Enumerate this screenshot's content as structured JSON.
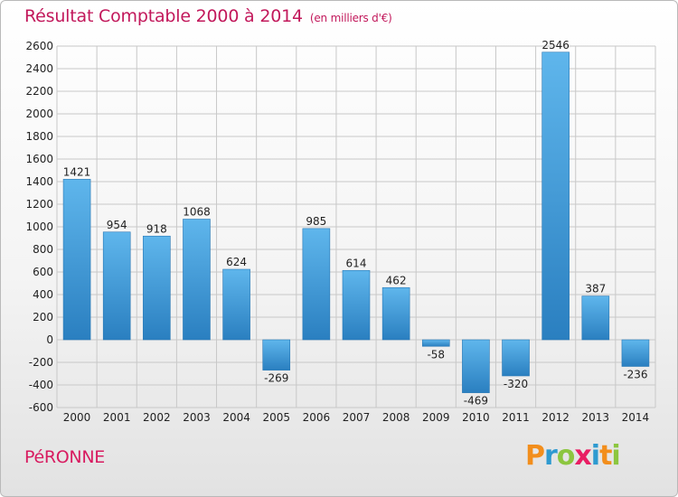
{
  "header": {
    "title": "Résultat Comptable 2000 à 2014",
    "unit": "(en milliers d'€)"
  },
  "footer": {
    "commune": "PéRONNE",
    "logo_letters": [
      "P",
      "r",
      "o",
      "x",
      "i",
      "t",
      "i"
    ],
    "logo_colors": [
      "#f28e1c",
      "#2e9ad0",
      "#8cc63f",
      "#e91e63",
      "#2e9ad0",
      "#f28e1c",
      "#8cc63f"
    ]
  },
  "colors": {
    "bar_top": "#5fb6ec",
    "bar_bottom": "#2a7fc0",
    "title": "#c2185b",
    "grid": "#c8c8c8"
  },
  "chart_data": {
    "type": "bar",
    "title": "Résultat Comptable 2000 à 2014",
    "subtitle": "(en milliers d'€)",
    "xlabel": "",
    "ylabel": "",
    "categories": [
      "2000",
      "2001",
      "2002",
      "2003",
      "2004",
      "2005",
      "2006",
      "2007",
      "2008",
      "2009",
      "2010",
      "2011",
      "2012",
      "2013",
      "2014"
    ],
    "values": [
      1421,
      954,
      918,
      1068,
      624,
      -269,
      985,
      614,
      462,
      -58,
      -469,
      -320,
      2546,
      387,
      -236
    ],
    "ylim": [
      -600,
      2600
    ],
    "yticks": [
      -600,
      -400,
      -200,
      0,
      200,
      400,
      600,
      800,
      1000,
      1200,
      1400,
      1600,
      1800,
      2000,
      2200,
      2400,
      2600
    ],
    "grid": true,
    "legend": "none"
  }
}
